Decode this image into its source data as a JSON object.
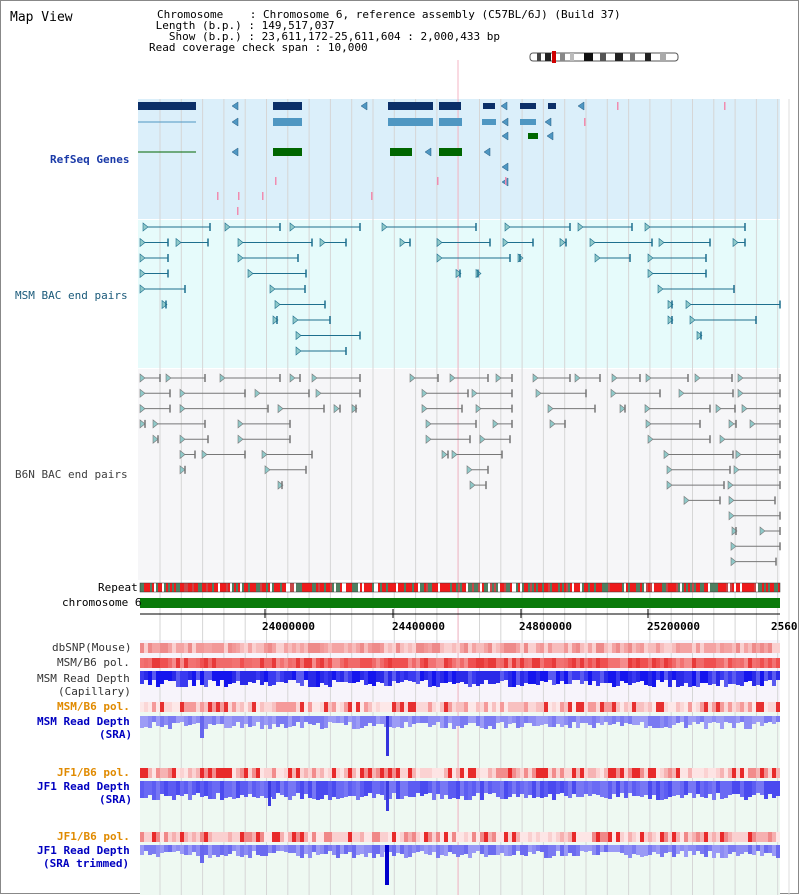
{
  "title": "Map View",
  "header": {
    "chromosome_label": "Chromosome",
    "chromosome_value": "Chromosome 6, reference assembly (C57BL/6J) (Build 37)",
    "length_label": "Length (b.p.)",
    "length_value": "149,517,037",
    "show_label": "Show (b.p.)",
    "show_value": "23,611,172-25,611,604 : 2,000,433 bp",
    "coverage_label": "Read coverage check span",
    "coverage_value": "10,000"
  },
  "tracks": {
    "refseq": "RefSeq Genes",
    "msm_bac": "MSM BAC end pairs",
    "b6n_bac": "B6N BAC end pairs",
    "repeat": "Repeat",
    "chromosome": "chromosome 6",
    "dbsnp": "dbSNP(Mouse)",
    "msm_b6_pol": "MSM/B6 pol.",
    "msm_depth_cap_1": "MSM Read Depth",
    "msm_depth_cap_2": "(Capillary)",
    "msm_b6_pol_2": "MSM/B6 pol.",
    "msm_depth_sra_1": "MSM Read Depth",
    "msm_depth_sra_2": "(SRA)",
    "jf1_pol": "JF1/B6 pol.",
    "jf1_depth_1": "JF1 Read Depth",
    "jf1_depth_2": "(SRA)",
    "jf1_pol_2": "JF1/B6 pol.",
    "jf1_trim_1": "JF1 Read Depth",
    "jf1_trim_2": "(SRA trimmed)"
  },
  "axis": {
    "range_bp": [
      23611172,
      25611604
    ],
    "ticks": [
      "24000000",
      "24400000",
      "24800000",
      "25200000",
      "2560"
    ]
  },
  "colors": {
    "refseq_bg": "#dbeffa",
    "msm_bg": "#e6fbfb",
    "b6n_bg": "#f6f6f8",
    "refseq_label": "#000080",
    "msm_label": "#1a5a7a",
    "b6n_label": "#404040",
    "pol_orange": "#e08a00",
    "depth_blue": "#0000c0",
    "gene_dark": "#0b2f68",
    "gene_mid": "#4f97c2",
    "gene_green": "#006600",
    "chrom_green": "#0a7a0a"
  }
}
